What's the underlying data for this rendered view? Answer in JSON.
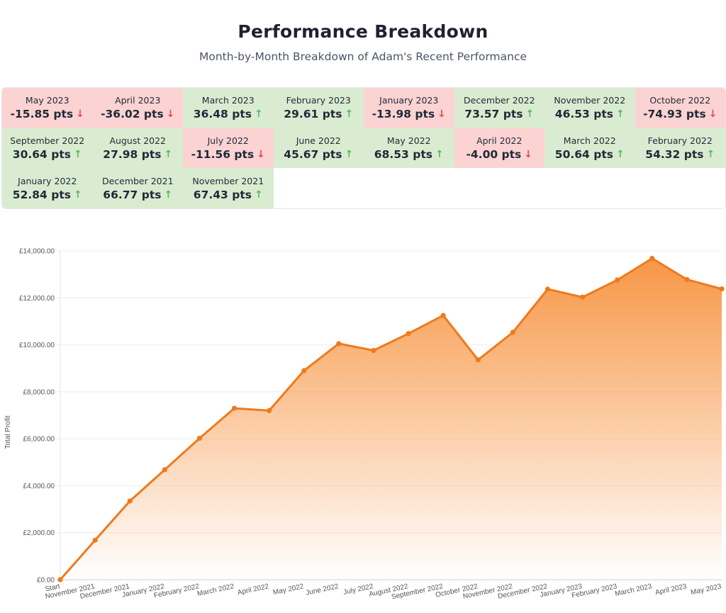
{
  "header": {
    "title": "Performance Breakdown",
    "subtitle": "Month-by-Month Breakdown of Adam's Recent Performance"
  },
  "breakdown": [
    {
      "month": "May 2023",
      "value": "-15.85 pts",
      "trend": "down"
    },
    {
      "month": "April 2023",
      "value": "-36.02 pts",
      "trend": "down"
    },
    {
      "month": "March 2023",
      "value": "36.48 pts",
      "trend": "up"
    },
    {
      "month": "February 2023",
      "value": "29.61 pts",
      "trend": "up"
    },
    {
      "month": "January 2023",
      "value": "-13.98 pts",
      "trend": "down"
    },
    {
      "month": "December 2022",
      "value": "73.57 pts",
      "trend": "up"
    },
    {
      "month": "November 2022",
      "value": "46.53 pts",
      "trend": "up"
    },
    {
      "month": "October 2022",
      "value": "-74.93 pts",
      "trend": "down"
    },
    {
      "month": "September 2022",
      "value": "30.64 pts",
      "trend": "up"
    },
    {
      "month": "August 2022",
      "value": "27.98 pts",
      "trend": "up"
    },
    {
      "month": "July 2022",
      "value": "-11.56 pts",
      "trend": "down"
    },
    {
      "month": "June 2022",
      "value": "45.67 pts",
      "trend": "up"
    },
    {
      "month": "May 2022",
      "value": "68.53 pts",
      "trend": "up"
    },
    {
      "month": "April 2022",
      "value": "-4.00 pts",
      "trend": "down"
    },
    {
      "month": "March 2022",
      "value": "50.64 pts",
      "trend": "up"
    },
    {
      "month": "February 2022",
      "value": "54.32 pts",
      "trend": "up"
    },
    {
      "month": "January 2022",
      "value": "52.84 pts",
      "trend": "up"
    },
    {
      "month": "December 2021",
      "value": "66.77 pts",
      "trend": "up"
    },
    {
      "month": "November 2021",
      "value": "67.43 pts",
      "trend": "up"
    }
  ],
  "icons": {
    "up": "arrow-up-icon",
    "down": "arrow-down-icon"
  },
  "colors": {
    "up_bg": "#d9ecd1",
    "down_bg": "#fcd3d3",
    "up_arrow": "#5bb85a",
    "down_arrow": "#e5484d",
    "line": "#ee7a1d"
  },
  "chart_data": {
    "type": "area",
    "ylabel": "Total Profit",
    "xlabel": "",
    "ylim": [
      0,
      14000
    ],
    "yticks": [
      0,
      2000,
      4000,
      6000,
      8000,
      10000,
      12000,
      14000
    ],
    "ytick_labels": [
      "£0.00",
      "£2,000.00",
      "£4,000.00",
      "£6,000.00",
      "£8,000.00",
      "£10,000.00",
      "£12,000.00",
      "£14,000.00"
    ],
    "categories": [
      "Start",
      "November 2021",
      "December 2021",
      "January 2022",
      "February 2022",
      "March 2022",
      "April 2022",
      "May 2022",
      "June 2022",
      "July 2022",
      "August 2022",
      "September 2022",
      "October 2022",
      "November 2022",
      "December 2022",
      "January 2023",
      "February 2023",
      "March 2023",
      "April 2023",
      "May 2023"
    ],
    "series": [
      {
        "values": [
          0,
          1680,
          3350,
          4680,
          6020,
          7300,
          7200,
          8900,
          10050,
          9760,
          10480,
          11250,
          9360,
          10530,
          12370,
          12030,
          12760,
          13680,
          12780,
          12380
        ]
      }
    ],
    "grid": true
  }
}
